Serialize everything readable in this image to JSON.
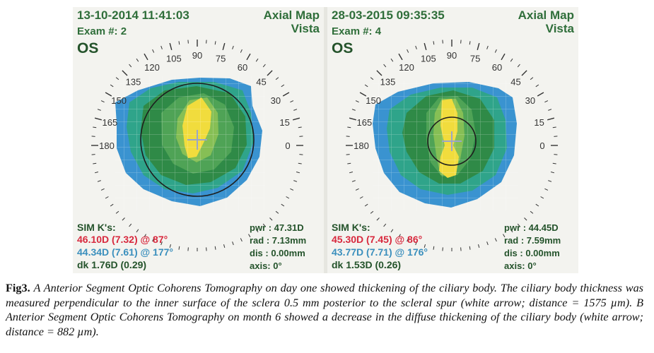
{
  "panels": [
    {
      "date": "13-10-2014 11:41:03",
      "exam": "Exam #: 2",
      "eye": "OS",
      "map_name": "Axial Map",
      "map_sub": "Vista",
      "sim_k_label": "SIM K's:",
      "k1": "46.10D (7.32) @ 87°",
      "k2": "44.34D (7.61) @ 177°",
      "dk": "dk  1.76D (0.29)",
      "pwr": "pwr : 47.31D",
      "rad": "rad :  7.13mm",
      "dis": "dis :  0.00mm",
      "axis": "axis:  0°"
    },
    {
      "date": "28-03-2015 09:35:35",
      "exam": "Exam #: 4",
      "eye": "OS",
      "map_name": "Axial Map",
      "map_sub": "Vista",
      "sim_k_label": "SIM K's:",
      "k1": "45.30D (7.45) @ 86°",
      "k2": "43.77D (7.71) @ 176°",
      "dk": "dk  1.53D (0.26)",
      "pwr": "pwr : 44.45D",
      "rad": "rad :  7.59mm",
      "dis": "dis :  0.00mm",
      "axis": "axis:  0°"
    }
  ],
  "dial_labels": [
    "0",
    "15",
    "30",
    "45",
    "60",
    "75",
    "90",
    "105",
    "120",
    "135",
    "150",
    "165",
    "180"
  ],
  "colors": {
    "blue": "#3a93d0",
    "teal": "#2fa48a",
    "green_dark": "#2f8a47",
    "green_mid": "#4fa356",
    "green_light": "#86bf55",
    "yellow": "#f1dc3d",
    "frame_text": "#2f6e3a",
    "k1_red": "#d8283d",
    "k2_blue": "#3a8fbd"
  },
  "caption": {
    "label": "Fig3.",
    "text": "A Anterior Segment Optic Cohorens Tomography on day one showed thickening of the ciliary body. The ciliary body thickness was measured perpendicular to the inner surface of the sclera 0.5 mm posterior to the scleral spur (white arrow; distance = 1575 µm). B Anterior Segment Optic Cohorens Tomography on month 6 showed a decrease in the diffuse thickening of the ciliary body (white arrow; distance = 882 µm)."
  }
}
